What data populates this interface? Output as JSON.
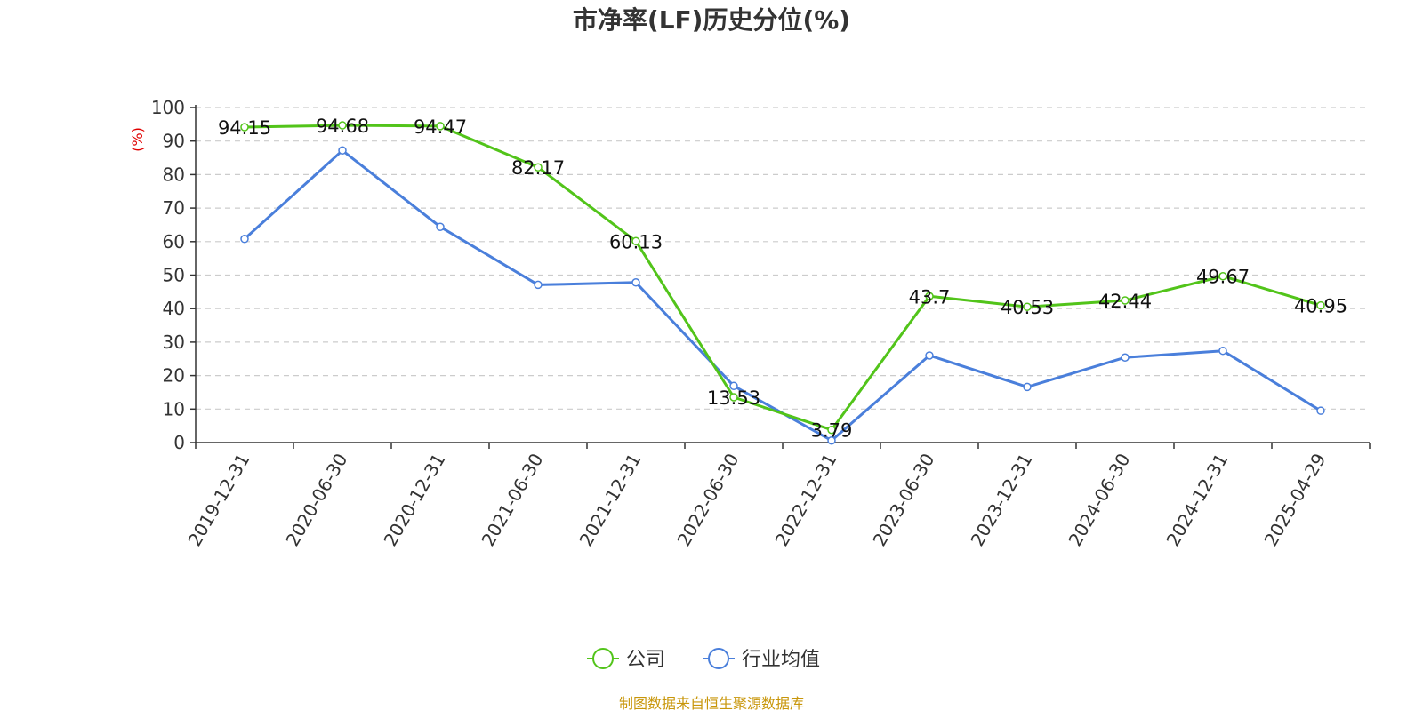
{
  "chart_data": {
    "type": "line",
    "title": "市净率(LF)历史分位(%)",
    "ylabel": "(%)",
    "xlabel": "",
    "ylim": [
      0,
      100
    ],
    "yticks": [
      0,
      10,
      20,
      30,
      40,
      50,
      60,
      70,
      80,
      90,
      100
    ],
    "grid": true,
    "legend_position": "bottom",
    "categories": [
      "2019-12-31",
      "2020-06-30",
      "2020-12-31",
      "2021-06-30",
      "2021-12-31",
      "2022-06-30",
      "2022-12-31",
      "2023-06-30",
      "2023-12-31",
      "2024-06-30",
      "2024-12-31",
      "2025-04-29"
    ],
    "series": [
      {
        "name": "公司",
        "color": "#52c41a",
        "values": [
          94.15,
          94.68,
          94.47,
          82.17,
          60.13,
          13.53,
          3.79,
          43.7,
          40.53,
          42.44,
          49.67,
          40.95
        ],
        "labels": [
          "94.15",
          "94.68",
          "94.47",
          "82.17",
          "60.13",
          "13.53",
          "3.79",
          "43.7",
          "40.53",
          "42.44",
          "49.67",
          "40.95"
        ]
      },
      {
        "name": "行业均值",
        "color": "#4a7fdb",
        "values": [
          60.8,
          87.2,
          64.4,
          47.1,
          47.8,
          16.9,
          0.6,
          26.0,
          16.6,
          25.4,
          27.4,
          9.5
        ]
      }
    ]
  },
  "footer": {
    "source": "制图数据来自恒生聚源数据库"
  }
}
